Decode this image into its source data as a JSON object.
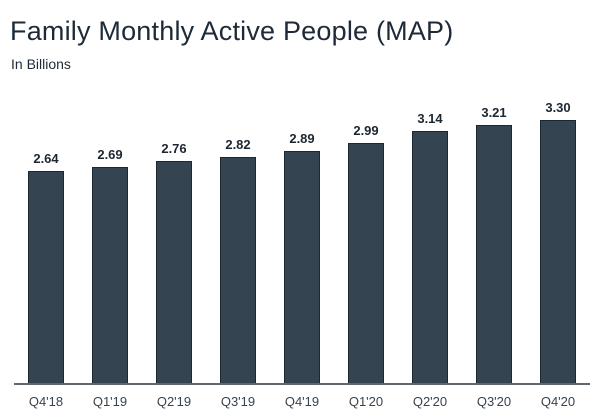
{
  "header": {
    "title": "Family Monthly Active People (MAP)",
    "subtitle": "In Billions"
  },
  "chart_data": {
    "type": "bar",
    "title": "Family Monthly Active People (MAP)",
    "subtitle": "In Billions",
    "xlabel": "",
    "ylabel": "In Billions",
    "categories": [
      "Q4'18",
      "Q1'19",
      "Q2'19",
      "Q3'19",
      "Q4'19",
      "Q1'20",
      "Q2'20",
      "Q3'20",
      "Q4'20"
    ],
    "values": [
      2.64,
      2.69,
      2.76,
      2.82,
      2.89,
      2.99,
      3.14,
      3.21,
      3.3
    ],
    "value_label_decimals": 2,
    "ylim": [
      0,
      3.55
    ],
    "grid": false,
    "legend": "none",
    "data_labels": true,
    "colors": {
      "bar_fill": "#344450",
      "bar_border": "#1d2730",
      "axis_line": "#5f666c",
      "value_label": "#1d2631",
      "axis_label": "#39434d",
      "title": "#1e2a38",
      "background": "#ffffff"
    }
  }
}
